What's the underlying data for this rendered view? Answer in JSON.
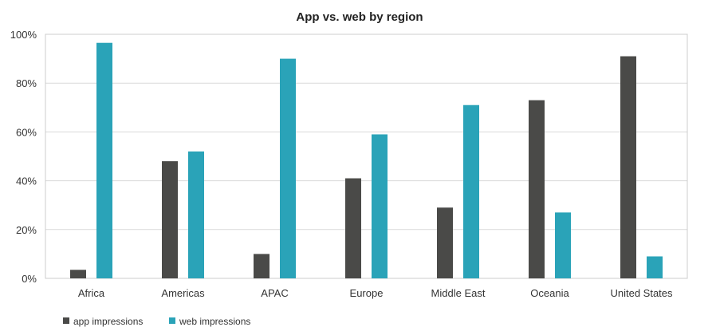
{
  "chart_data": {
    "type": "bar",
    "title": "App vs. web by region",
    "xlabel": "",
    "ylabel": "",
    "ylim": [
      0,
      100
    ],
    "yticks": [
      0,
      20,
      40,
      60,
      80,
      100
    ],
    "ytick_labels": [
      "0%",
      "20%",
      "40%",
      "60%",
      "80%",
      "100%"
    ],
    "grid": true,
    "legend_position": "bottom-left",
    "categories": [
      "Africa",
      "Americas",
      "APAC",
      "Europe",
      "Middle East",
      "Oceania",
      "United States"
    ],
    "series": [
      {
        "name": "app impressions",
        "color": "#4a4a48",
        "values": [
          3.5,
          48,
          10,
          41,
          29,
          73,
          91
        ]
      },
      {
        "name": "web impressions",
        "color": "#2aa3b8",
        "values": [
          96.5,
          52,
          90,
          59,
          71,
          27,
          9
        ]
      }
    ]
  }
}
